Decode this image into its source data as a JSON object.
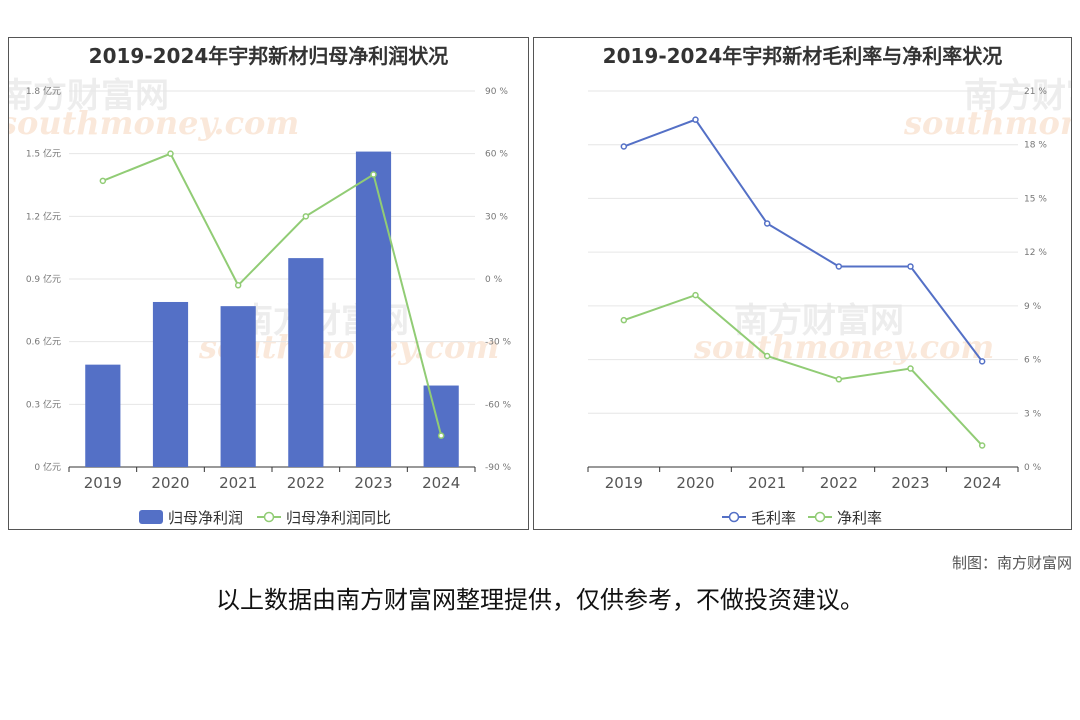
{
  "chart_data": [
    {
      "type": "bar",
      "title": "2019-2024年宇邦新材归母净利润状况",
      "categories": [
        "2019",
        "2020",
        "2021",
        "2022",
        "2023",
        "2024"
      ],
      "series": [
        {
          "name": "归母净利润",
          "type": "bar",
          "axis": "left",
          "color": "#5470c6",
          "values": [
            0.49,
            0.79,
            0.77,
            1.0,
            1.51,
            0.39
          ]
        },
        {
          "name": "归母净利润同比",
          "type": "line",
          "axis": "right",
          "color": "#91cc75",
          "values": [
            47,
            60,
            -3,
            30,
            50,
            -75
          ]
        }
      ],
      "y_left": {
        "ticks": [
          "0 亿元",
          "0.3 亿元",
          "0.6 亿元",
          "0.9 亿元",
          "1.2 亿元",
          "1.5 亿元",
          "1.8 亿元"
        ],
        "ylim": [
          0,
          1.8
        ]
      },
      "y_right": {
        "ticks": [
          "-90 %",
          "-60 %",
          "-30 %",
          "0 %",
          "30 %",
          "60 %",
          "90 %"
        ],
        "ylim": [
          -90,
          90
        ]
      },
      "legend_position": "bottom",
      "grid": true
    },
    {
      "type": "line",
      "title": "2019-2024年宇邦新材毛利率与净利率状况",
      "categories": [
        "2019",
        "2020",
        "2021",
        "2022",
        "2023",
        "2024"
      ],
      "series": [
        {
          "name": "毛利率",
          "color": "#5470c6",
          "values": [
            17.9,
            19.4,
            13.6,
            11.2,
            11.2,
            5.9
          ]
        },
        {
          "name": "净利率",
          "color": "#91cc75",
          "values": [
            8.2,
            9.6,
            6.2,
            4.9,
            5.5,
            1.2
          ]
        }
      ],
      "y_right": {
        "ticks": [
          "0 %",
          "3 %",
          "6 %",
          "9 %",
          "12 %",
          "15 %",
          "18 %",
          "21 %"
        ],
        "ylim": [
          0,
          21
        ]
      },
      "legend_position": "bottom",
      "grid": true
    }
  ],
  "watermark": {
    "cn": "南方财富网",
    "en": "southmoney.com"
  },
  "credit": "制图：南方财富网",
  "disclaimer": "以上数据由南方财富网整理提供，仅供参考，不做投资建议。"
}
